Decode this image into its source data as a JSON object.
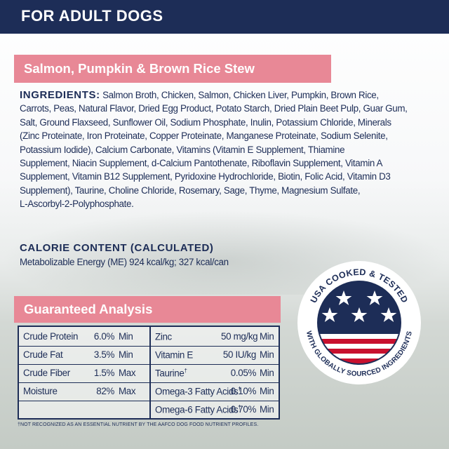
{
  "header": {
    "title": "FOR ADULT DOGS"
  },
  "product": {
    "name": "Salmon, Pumpkin & Brown Rice Stew"
  },
  "ingredients": {
    "heading": "INGREDIENTS:",
    "lines": [
      "Salmon Broth, Chicken, Salmon, Chicken Liver, Pumpkin, Brown Rice,",
      "Carrots, Peas, Natural Flavor, Dried Egg Product, Potato Starch, Dried Plain Beet Pulp, Guar Gum,",
      "Salt, Ground Flaxseed, Sunflower Oil, Sodium Phosphate, Inulin, Potassium Chloride, Minerals",
      "(Zinc Proteinate, Iron Proteinate, Copper Proteinate, Manganese Proteinate, Sodium Selenite,",
      "Potassium Iodide), Calcium Carbonate, Vitamins (Vitamin E Supplement, Thiamine",
      "Supplement, Niacin Supplement, d-Calcium Pantothenate, Riboflavin Supplement, Vitamin A",
      "Supplement, Vitamin B12 Supplement, Pyridoxine Hydrochloride, Biotin, Folic Acid, Vitamin D3",
      "Supplement), Taurine, Choline Chloride, Rosemary, Sage, Thyme, Magnesium Sulfate,",
      "L-Ascorbyl-2-Polyphosphate."
    ]
  },
  "calorie": {
    "heading": "CALORIE CONTENT (CALCULATED)",
    "text": "Metabolizable Energy (ME) 924 kcal/kg; 327 kcal/can"
  },
  "analysis": {
    "heading": "Guaranteed Analysis",
    "left": [
      {
        "name": "Crude Protein",
        "value": "6.0%",
        "unit": "Min"
      },
      {
        "name": "Crude Fat",
        "value": "3.5%",
        "unit": "Min"
      },
      {
        "name": "Crude Fiber",
        "value": "1.5%",
        "unit": "Max"
      },
      {
        "name": "Moisture",
        "value": "82%",
        "unit": "Max"
      }
    ],
    "right": [
      {
        "name": "Zinc",
        "value": "50 mg/kg",
        "unit": "Min",
        "dagger": ""
      },
      {
        "name": "Vitamin E",
        "value": "50 IU/kg",
        "unit": "Min",
        "dagger": ""
      },
      {
        "name": "Taurine",
        "value": "0.05%",
        "unit": "Min",
        "dagger": "†"
      },
      {
        "name": "Omega-3 Fatty Acids",
        "value": "0.10%",
        "unit": "Min",
        "dagger": "†"
      },
      {
        "name": "Omega-6 Fatty Acids",
        "value": "0.70%",
        "unit": "Min",
        "dagger": "†"
      }
    ]
  },
  "footnote": "†NOT RECOGNIZED AS AN ESSENTIAL NUTRIENT BY THE AAFCO DOG FOOD NUTRIENT PROFILES.",
  "seal": {
    "top_text": "USA COOKED & TESTED",
    "bottom_text": "WITH GLOBALLY SOURCED INGREDIENTS"
  },
  "colors": {
    "navy": "#1d2d57",
    "pink": "#e88896",
    "flag_red": "#c8102e",
    "white": "#ffffff"
  }
}
